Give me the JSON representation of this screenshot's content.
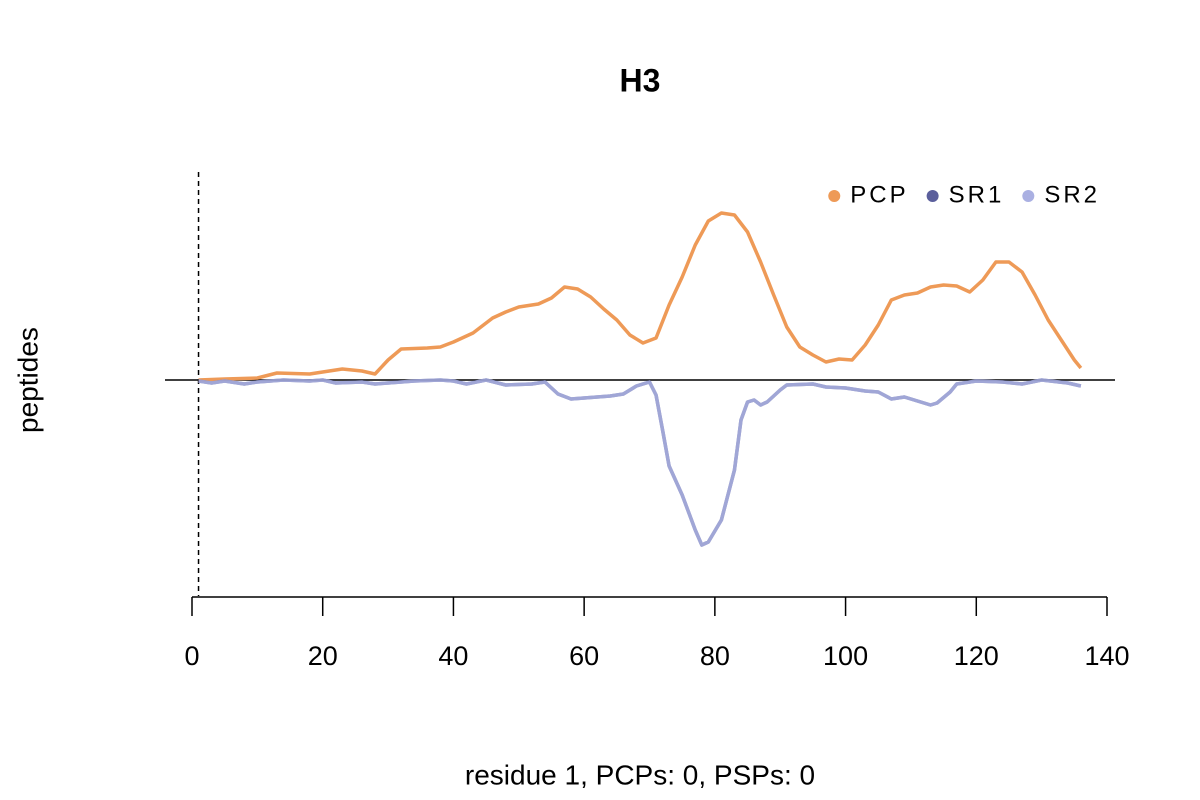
{
  "chart_data": {
    "type": "line",
    "title": "H3",
    "xlabel": "residue 1, PCPs: 0, PSPs: 0",
    "ylabel": "peptides",
    "xlim": [
      0,
      140
    ],
    "xticks": [
      0,
      20,
      40,
      60,
      80,
      100,
      120,
      140
    ],
    "ylim": [
      -2.16,
      2.1
    ],
    "vline": 1,
    "legend": "top-right",
    "series": [
      {
        "name": "PCP",
        "color": "#ee9a57",
        "x": [
          1,
          5,
          10,
          13,
          18,
          20,
          23,
          26,
          28,
          30,
          32,
          36,
          38,
          40,
          43,
          46,
          48,
          50,
          53,
          55,
          57,
          59,
          61,
          63,
          65,
          67,
          69,
          71,
          73,
          75,
          77,
          79,
          81,
          83,
          85,
          87,
          89,
          91,
          93,
          95,
          97,
          99,
          101,
          103,
          105,
          107,
          109,
          111,
          113,
          115,
          117,
          119,
          121,
          123,
          125,
          127,
          129,
          131,
          133,
          135,
          136
        ],
        "values": [
          0,
          0.01,
          0.02,
          0.07,
          0.06,
          0.08,
          0.11,
          0.09,
          0.06,
          0.2,
          0.31,
          0.32,
          0.33,
          0.38,
          0.47,
          0.62,
          0.68,
          0.73,
          0.76,
          0.82,
          0.93,
          0.91,
          0.83,
          0.71,
          0.6,
          0.45,
          0.37,
          0.42,
          0.75,
          1.03,
          1.35,
          1.59,
          1.67,
          1.65,
          1.48,
          1.18,
          0.85,
          0.53,
          0.33,
          0.25,
          0.18,
          0.21,
          0.2,
          0.35,
          0.55,
          0.8,
          0.85,
          0.87,
          0.93,
          0.95,
          0.94,
          0.88,
          1.0,
          1.18,
          1.18,
          1.08,
          0.85,
          0.6,
          0.4,
          0.2,
          0.12
        ]
      },
      {
        "name": "SR1",
        "color": "#5b5f9c",
        "x": [
          1,
          3,
          5,
          8,
          10,
          14,
          18,
          20,
          22,
          26,
          28,
          30,
          34,
          38,
          40,
          42,
          45,
          48,
          52,
          54,
          56,
          58,
          62,
          64,
          66,
          68,
          70,
          71,
          72,
          73,
          75,
          77,
          78,
          79,
          81,
          83,
          84,
          85,
          86,
          87,
          88,
          90,
          91,
          95,
          97,
          100,
          103,
          105,
          107,
          109,
          111,
          113,
          114,
          116,
          117,
          120,
          124,
          127,
          130,
          134,
          136
        ],
        "values": [
          -0.01,
          -0.03,
          -0.01,
          -0.04,
          -0.02,
          0,
          -0.01,
          0,
          -0.03,
          -0.02,
          -0.04,
          -0.03,
          -0.01,
          0,
          -0.01,
          -0.04,
          0,
          -0.05,
          -0.04,
          -0.02,
          -0.14,
          -0.19,
          -0.17,
          -0.16,
          -0.14,
          -0.06,
          -0.02,
          -0.15,
          -0.5,
          -0.86,
          -1.15,
          -1.5,
          -1.65,
          -1.62,
          -1.4,
          -0.9,
          -0.4,
          -0.22,
          -0.2,
          -0.25,
          -0.22,
          -0.1,
          -0.05,
          -0.04,
          -0.07,
          -0.08,
          -0.11,
          -0.12,
          -0.19,
          -0.17,
          -0.21,
          -0.25,
          -0.23,
          -0.12,
          -0.04,
          -0.01,
          -0.02,
          -0.04,
          0,
          -0.03,
          -0.06
        ]
      },
      {
        "name": "SR2",
        "color": "#aab0e2",
        "x": [
          1,
          3,
          5,
          8,
          10,
          14,
          18,
          20,
          22,
          26,
          28,
          30,
          34,
          38,
          40,
          42,
          45,
          48,
          52,
          54,
          56,
          58,
          62,
          64,
          66,
          68,
          70,
          71,
          72,
          73,
          75,
          77,
          78,
          79,
          81,
          83,
          84,
          85,
          86,
          87,
          88,
          90,
          91,
          95,
          97,
          100,
          103,
          105,
          107,
          109,
          111,
          113,
          114,
          116,
          117,
          120,
          124,
          127,
          130,
          134,
          136
        ],
        "values": [
          -0.01,
          -0.03,
          -0.01,
          -0.04,
          -0.02,
          0,
          -0.01,
          0,
          -0.03,
          -0.02,
          -0.04,
          -0.03,
          -0.01,
          0,
          -0.01,
          -0.04,
          0,
          -0.05,
          -0.04,
          -0.02,
          -0.14,
          -0.19,
          -0.17,
          -0.16,
          -0.14,
          -0.06,
          -0.02,
          -0.15,
          -0.5,
          -0.86,
          -1.15,
          -1.5,
          -1.65,
          -1.62,
          -1.4,
          -0.9,
          -0.4,
          -0.22,
          -0.2,
          -0.25,
          -0.22,
          -0.1,
          -0.05,
          -0.04,
          -0.07,
          -0.08,
          -0.11,
          -0.12,
          -0.19,
          -0.17,
          -0.21,
          -0.25,
          -0.23,
          -0.12,
          -0.04,
          -0.01,
          -0.02,
          -0.04,
          0,
          -0.03,
          -0.06
        ]
      }
    ]
  }
}
